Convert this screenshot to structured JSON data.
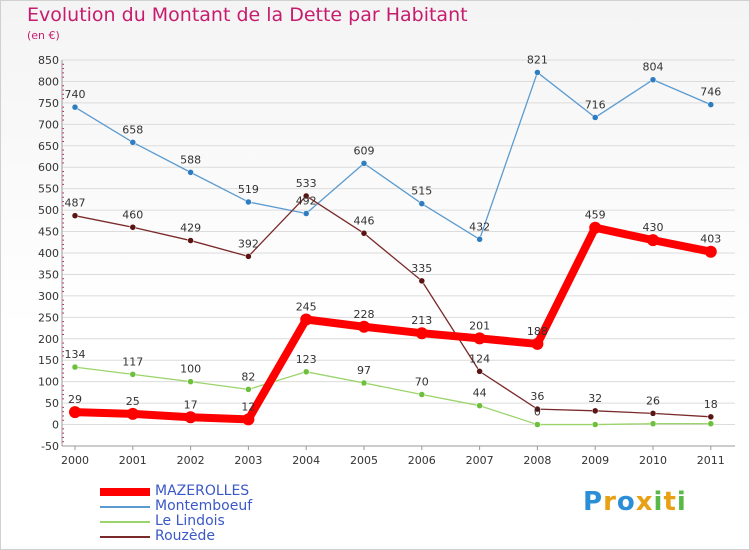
{
  "title": "Evolution du Montant de la Dette par Habitant",
  "unit": "(en €)",
  "logo": {
    "letters": [
      "P",
      "r",
      "o",
      "x",
      "i",
      "t",
      "i"
    ],
    "colors": [
      "#2a8fd6",
      "#e8a014",
      "#2a8fd6",
      "#e8a014",
      "#58b848",
      "#e8a014",
      "#58b848"
    ]
  },
  "chart_data": {
    "type": "line",
    "x": [
      "2000",
      "2001",
      "2002",
      "2003",
      "2004",
      "2005",
      "2006",
      "2007",
      "2008",
      "2009",
      "2010",
      "2011"
    ],
    "ylim": [
      -50,
      850
    ],
    "yticks": [
      -50,
      0,
      50,
      100,
      150,
      200,
      250,
      300,
      350,
      400,
      450,
      500,
      550,
      600,
      650,
      700,
      750,
      800,
      850
    ],
    "grid": "horizontal",
    "legend_position": "bottom-left",
    "series": [
      {
        "name": "Montemboeuf",
        "color": "#5b9bd0",
        "marker": "#2e7dc1",
        "values": [
          740,
          658,
          588,
          519,
          492,
          609,
          515,
          432,
          821,
          716,
          804,
          746
        ],
        "labels": [
          "740",
          "658",
          "588",
          "519",
          "492",
          "609",
          "515",
          "432",
          "821",
          "716",
          "804",
          "746"
        ]
      },
      {
        "name": "Rouzède",
        "color": "#7a2a2a",
        "marker": "#5a1414",
        "values": [
          487,
          460,
          429,
          392,
          533,
          446,
          335,
          124,
          36,
          32,
          26,
          18
        ],
        "labels": [
          "487",
          "460",
          "429",
          "392",
          "533",
          "446",
          "335",
          "124",
          "36",
          "32",
          "26",
          "18"
        ]
      },
      {
        "name": "Le Lindois",
        "color": "#9ad46a",
        "marker": "#6cc03c",
        "values": [
          134,
          117,
          100,
          82,
          123,
          97,
          70,
          44,
          0,
          0,
          2,
          2
        ],
        "labels": [
          "134",
          "117",
          "100",
          "82",
          "123",
          "97",
          "70",
          "44",
          "0",
          "",
          "",
          ""
        ]
      },
      {
        "name": "MAZEROLLES",
        "color": "#ff0000",
        "marker": "#ff0000",
        "values": [
          29,
          25,
          17,
          12,
          245,
          228,
          213,
          201,
          188,
          459,
          430,
          403
        ],
        "labels": [
          "29",
          "25",
          "17",
          "12",
          "245",
          "228",
          "213",
          "201",
          "188",
          "459",
          "430",
          "403"
        ]
      }
    ],
    "legend_order": [
      "MAZEROLLES",
      "Montemboeuf",
      "Le Lindois",
      "Rouzède"
    ]
  }
}
